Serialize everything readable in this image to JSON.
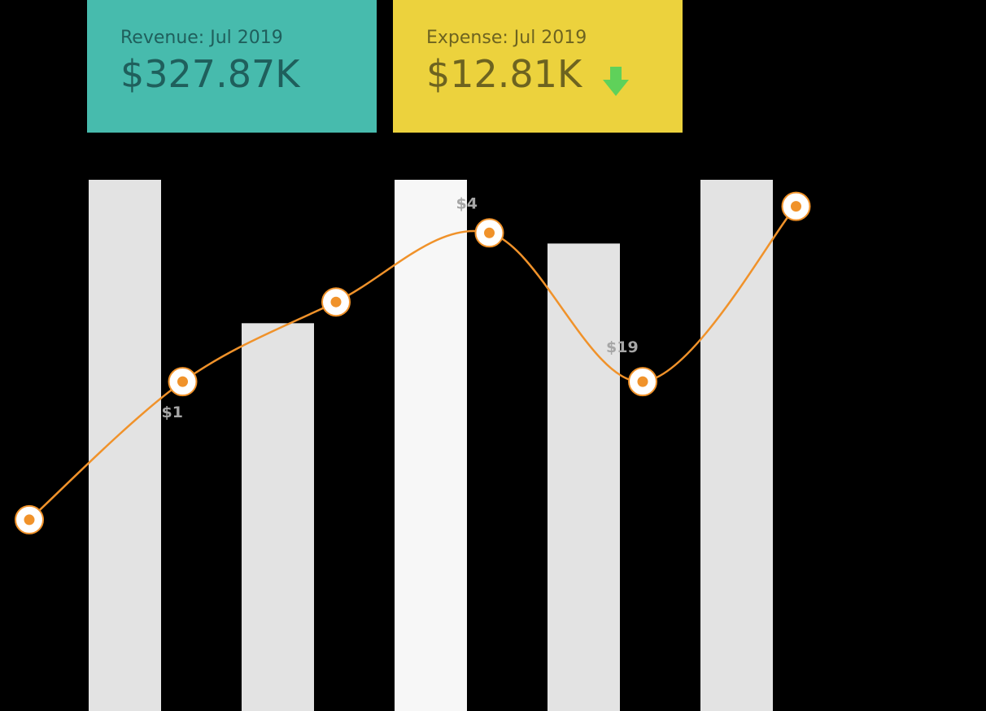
{
  "kpis": {
    "revenue": {
      "label": "Revenue: Jul 2019",
      "value": "$327.87K",
      "color": "#47bbad"
    },
    "expense": {
      "label": "Expense: Jul 2019",
      "value": "$12.81K",
      "color": "#ecd23d",
      "trend": "down",
      "trend_icon": "arrow-down-icon",
      "trend_color": "#5fd15a"
    }
  },
  "chart_data": {
    "type": "bar",
    "ylim": [
      0,
      100
    ],
    "bars": {
      "values": [
        100,
        73,
        100,
        88,
        100
      ],
      "colors": [
        "#e3e3e3",
        "#e3e3e3",
        "#f7f7f7",
        "#e3e3e3",
        "#e3e3e3"
      ]
    },
    "line": {
      "values": [
        36,
        62,
        77,
        90,
        62,
        95
      ],
      "color": "#f0922a"
    },
    "data_labels": [
      {
        "point": 1,
        "text": "$1"
      },
      {
        "point": 3,
        "text": "$4"
      },
      {
        "point": 4,
        "text": "$19"
      }
    ],
    "grid": false,
    "legend": "none"
  }
}
